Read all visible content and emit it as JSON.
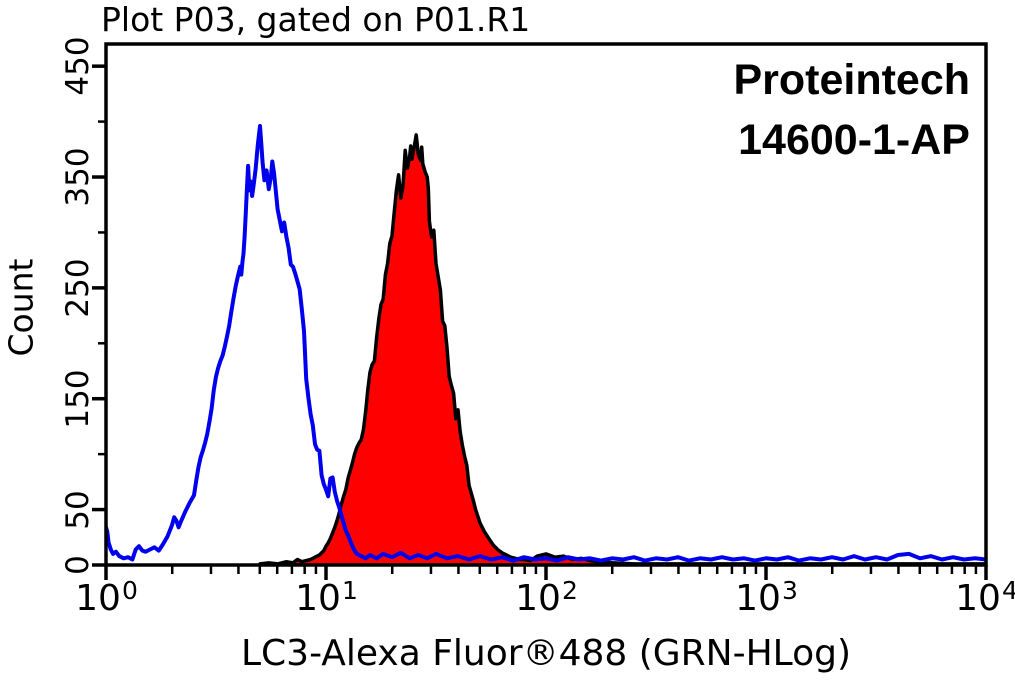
{
  "title": "Plot P03, gated on P01.R1",
  "brand": {
    "line1": "Proteintech",
    "line2": "14600-1-AP"
  },
  "colors": {
    "control_line": "#0000ee",
    "sample_fill": "#ff0000",
    "sample_stroke": "#000000",
    "axis": "#000000",
    "background": "#ffffff"
  },
  "chart_data": {
    "type": "area",
    "subtype": "flow-cytometry-histogram-overlay",
    "title": "Plot P03, gated on P01.R1",
    "xlabel": "LC3-Alexa Fluor®488 (GRN-HLog)",
    "ylabel": "Count",
    "x_scale": "log10",
    "xlim": [
      1,
      10000
    ],
    "x_decades": 4,
    "ylim": [
      0,
      470
    ],
    "grid": false,
    "legend": "none",
    "x_ticks": [
      {
        "base": "10",
        "exp": "0",
        "log": 0
      },
      {
        "base": "10",
        "exp": "1",
        "log": 1
      },
      {
        "base": "10",
        "exp": "2",
        "log": 2
      },
      {
        "base": "10",
        "exp": "3",
        "log": 3
      },
      {
        "base": "10",
        "exp": "4",
        "log": 4
      }
    ],
    "y_ticks_major": [
      0,
      50,
      150,
      250,
      350,
      450
    ],
    "y_ticks_minor": [
      100,
      200,
      300,
      400
    ],
    "series": [
      {
        "name": "red-filled-histogram",
        "style": "filled",
        "fill": "#ff0000",
        "stroke": "#000000",
        "stroke_width": 3.5,
        "peak": {
          "x": 26,
          "count": 388
        },
        "points_logx_count": [
          [
            0.7,
            1
          ],
          [
            0.74,
            2
          ],
          [
            0.78,
            1
          ],
          [
            0.82,
            3
          ],
          [
            0.85,
            2
          ],
          [
            0.87,
            5
          ],
          [
            0.89,
            3
          ],
          [
            0.91,
            4
          ],
          [
            0.93,
            5
          ],
          [
            0.95,
            7
          ],
          [
            0.97,
            9
          ],
          [
            0.99,
            13
          ],
          [
            1.0,
            17
          ],
          [
            1.01,
            20
          ],
          [
            1.02,
            24
          ],
          [
            1.03,
            29
          ],
          [
            1.04,
            34
          ],
          [
            1.05,
            40
          ],
          [
            1.06,
            47
          ],
          [
            1.07,
            55
          ],
          [
            1.08,
            62
          ],
          [
            1.09,
            68
          ],
          [
            1.1,
            78
          ],
          [
            1.11,
            85
          ],
          [
            1.12,
            92
          ],
          [
            1.13,
            100
          ],
          [
            1.14,
            106
          ],
          [
            1.15,
            110
          ],
          [
            1.16,
            113
          ],
          [
            1.17,
            122
          ],
          [
            1.18,
            138
          ],
          [
            1.19,
            158
          ],
          [
            1.2,
            174
          ],
          [
            1.21,
            181
          ],
          [
            1.22,
            184
          ],
          [
            1.23,
            205
          ],
          [
            1.24,
            222
          ],
          [
            1.25,
            235
          ],
          [
            1.26,
            240
          ],
          [
            1.27,
            262
          ],
          [
            1.28,
            272
          ],
          [
            1.29,
            290
          ],
          [
            1.3,
            297
          ],
          [
            1.31,
            318
          ],
          [
            1.32,
            338
          ],
          [
            1.33,
            352
          ],
          [
            1.34,
            331
          ],
          [
            1.35,
            342
          ],
          [
            1.36,
            374
          ],
          [
            1.37,
            358
          ],
          [
            1.38,
            368
          ],
          [
            1.385,
            378
          ],
          [
            1.39,
            366
          ],
          [
            1.4,
            376
          ],
          [
            1.41,
            388
          ],
          [
            1.42,
            370
          ],
          [
            1.43,
            365
          ],
          [
            1.435,
            377
          ],
          [
            1.44,
            362
          ],
          [
            1.45,
            355
          ],
          [
            1.46,
            350
          ],
          [
            1.465,
            340
          ],
          [
            1.47,
            310
          ],
          [
            1.48,
            296
          ],
          [
            1.49,
            302
          ],
          [
            1.5,
            272
          ],
          [
            1.51,
            260
          ],
          [
            1.52,
            248
          ],
          [
            1.53,
            220
          ],
          [
            1.54,
            216
          ],
          [
            1.55,
            196
          ],
          [
            1.56,
            170
          ],
          [
            1.57,
            162
          ],
          [
            1.58,
            155
          ],
          [
            1.59,
            132
          ],
          [
            1.6,
            140
          ],
          [
            1.61,
            120
          ],
          [
            1.62,
            108
          ],
          [
            1.63,
            98
          ],
          [
            1.64,
            90
          ],
          [
            1.65,
            72
          ],
          [
            1.66,
            65
          ],
          [
            1.67,
            58
          ],
          [
            1.68,
            50
          ],
          [
            1.69,
            44
          ],
          [
            1.7,
            38
          ],
          [
            1.72,
            30
          ],
          [
            1.74,
            24
          ],
          [
            1.76,
            18
          ],
          [
            1.78,
            14
          ],
          [
            1.8,
            11
          ],
          [
            1.82,
            9
          ],
          [
            1.84,
            7
          ],
          [
            1.86,
            6
          ],
          [
            1.88,
            5
          ],
          [
            1.9,
            5
          ],
          [
            1.93,
            4
          ],
          [
            1.96,
            8
          ],
          [
            2.0,
            10
          ],
          [
            2.04,
            7
          ],
          [
            2.08,
            8
          ],
          [
            2.12,
            5
          ],
          [
            2.16,
            6
          ],
          [
            2.2,
            4
          ],
          [
            2.25,
            3
          ],
          [
            2.3,
            2
          ],
          [
            2.4,
            1
          ],
          [
            2.5,
            1
          ],
          [
            2.6,
            1
          ],
          [
            2.7,
            1
          ],
          [
            2.8,
            1
          ],
          [
            2.9,
            1
          ],
          [
            3.0,
            1
          ],
          [
            3.2,
            1
          ],
          [
            3.4,
            1
          ],
          [
            3.6,
            1
          ],
          [
            3.8,
            1
          ],
          [
            4.0,
            1
          ]
        ]
      },
      {
        "name": "blue-open-histogram",
        "style": "line",
        "stroke": "#0000ee",
        "stroke_width": 4,
        "peak": {
          "x": 5,
          "count": 396
        },
        "points_logx_count": [
          [
            0.0,
            34
          ],
          [
            0.006,
            30
          ],
          [
            0.012,
            20
          ],
          [
            0.022,
            14
          ],
          [
            0.032,
            10
          ],
          [
            0.045,
            12
          ],
          [
            0.06,
            8
          ],
          [
            0.08,
            6
          ],
          [
            0.1,
            7
          ],
          [
            0.12,
            5
          ],
          [
            0.135,
            14
          ],
          [
            0.15,
            17
          ],
          [
            0.165,
            13
          ],
          [
            0.18,
            12
          ],
          [
            0.2,
            14
          ],
          [
            0.22,
            16
          ],
          [
            0.24,
            13
          ],
          [
            0.26,
            19
          ],
          [
            0.28,
            26
          ],
          [
            0.3,
            36
          ],
          [
            0.31,
            43
          ],
          [
            0.32,
            40
          ],
          [
            0.33,
            34
          ],
          [
            0.34,
            39
          ],
          [
            0.36,
            48
          ],
          [
            0.38,
            56
          ],
          [
            0.4,
            63
          ],
          [
            0.41,
            76
          ],
          [
            0.42,
            88
          ],
          [
            0.43,
            97
          ],
          [
            0.44,
            103
          ],
          [
            0.45,
            110
          ],
          [
            0.46,
            118
          ],
          [
            0.47,
            129
          ],
          [
            0.48,
            141
          ],
          [
            0.49,
            158
          ],
          [
            0.5,
            170
          ],
          [
            0.51,
            178
          ],
          [
            0.52,
            184
          ],
          [
            0.53,
            189
          ],
          [
            0.54,
            197
          ],
          [
            0.55,
            206
          ],
          [
            0.56,
            216
          ],
          [
            0.57,
            229
          ],
          [
            0.58,
            241
          ],
          [
            0.59,
            252
          ],
          [
            0.6,
            261
          ],
          [
            0.61,
            269
          ],
          [
            0.615,
            262
          ],
          [
            0.62,
            273
          ],
          [
            0.625,
            281
          ],
          [
            0.63,
            296
          ],
          [
            0.635,
            316
          ],
          [
            0.64,
            337
          ],
          [
            0.646,
            360
          ],
          [
            0.652,
            338
          ],
          [
            0.658,
            346
          ],
          [
            0.664,
            333
          ],
          [
            0.67,
            341
          ],
          [
            0.68,
            357
          ],
          [
            0.69,
            379
          ],
          [
            0.7,
            396
          ],
          [
            0.706,
            380
          ],
          [
            0.712,
            363
          ],
          [
            0.72,
            347
          ],
          [
            0.73,
            356
          ],
          [
            0.74,
            339
          ],
          [
            0.75,
            351
          ],
          [
            0.756,
            364
          ],
          [
            0.764,
            353
          ],
          [
            0.774,
            333
          ],
          [
            0.78,
            321
          ],
          [
            0.79,
            311
          ],
          [
            0.8,
            301
          ],
          [
            0.81,
            309
          ],
          [
            0.82,
            296
          ],
          [
            0.83,
            286
          ],
          [
            0.84,
            271
          ],
          [
            0.85,
            269
          ],
          [
            0.86,
            263
          ],
          [
            0.87,
            256
          ],
          [
            0.88,
            249
          ],
          [
            0.89,
            231
          ],
          [
            0.9,
            211
          ],
          [
            0.91,
            168
          ],
          [
            0.92,
            151
          ],
          [
            0.93,
            136
          ],
          [
            0.94,
            126
          ],
          [
            0.95,
            109
          ],
          [
            0.96,
            104
          ],
          [
            0.97,
            103
          ],
          [
            0.98,
            81
          ],
          [
            0.99,
            73
          ],
          [
            1.0,
            68
          ],
          [
            1.01,
            62
          ],
          [
            1.02,
            78
          ],
          [
            1.03,
            79
          ],
          [
            1.04,
            66
          ],
          [
            1.05,
            58
          ],
          [
            1.06,
            52
          ],
          [
            1.07,
            45
          ],
          [
            1.08,
            38
          ],
          [
            1.09,
            31
          ],
          [
            1.1,
            27
          ],
          [
            1.11,
            22
          ],
          [
            1.12,
            17
          ],
          [
            1.13,
            13
          ],
          [
            1.14,
            10
          ],
          [
            1.16,
            8
          ],
          [
            1.18,
            6
          ],
          [
            1.2,
            9
          ],
          [
            1.23,
            6
          ],
          [
            1.26,
            10
          ],
          [
            1.3,
            7
          ],
          [
            1.34,
            11
          ],
          [
            1.38,
            6
          ],
          [
            1.42,
            9
          ],
          [
            1.46,
            6
          ],
          [
            1.5,
            10
          ],
          [
            1.55,
            6
          ],
          [
            1.6,
            8
          ],
          [
            1.65,
            5
          ],
          [
            1.7,
            8
          ],
          [
            1.75,
            5
          ],
          [
            1.8,
            7
          ],
          [
            1.85,
            4
          ],
          [
            1.9,
            7
          ],
          [
            1.95,
            5
          ],
          [
            2.0,
            6
          ],
          [
            2.05,
            4
          ],
          [
            2.1,
            7
          ],
          [
            2.15,
            5
          ],
          [
            2.2,
            6
          ],
          [
            2.25,
            4
          ],
          [
            2.3,
            6
          ],
          [
            2.35,
            5
          ],
          [
            2.4,
            7
          ],
          [
            2.45,
            4
          ],
          [
            2.5,
            6
          ],
          [
            2.55,
            5
          ],
          [
            2.6,
            7
          ],
          [
            2.65,
            4
          ],
          [
            2.7,
            6
          ],
          [
            2.75,
            5
          ],
          [
            2.8,
            7
          ],
          [
            2.85,
            5
          ],
          [
            2.9,
            6
          ],
          [
            2.95,
            4
          ],
          [
            3.0,
            6
          ],
          [
            3.05,
            5
          ],
          [
            3.1,
            7
          ],
          [
            3.15,
            4
          ],
          [
            3.2,
            6
          ],
          [
            3.25,
            5
          ],
          [
            3.3,
            7
          ],
          [
            3.35,
            5
          ],
          [
            3.4,
            8
          ],
          [
            3.45,
            5
          ],
          [
            3.5,
            7
          ],
          [
            3.55,
            5
          ],
          [
            3.6,
            9
          ],
          [
            3.65,
            10
          ],
          [
            3.7,
            6
          ],
          [
            3.75,
            8
          ],
          [
            3.8,
            5
          ],
          [
            3.85,
            7
          ],
          [
            3.9,
            5
          ],
          [
            3.95,
            6
          ],
          [
            4.0,
            5
          ]
        ]
      }
    ]
  }
}
